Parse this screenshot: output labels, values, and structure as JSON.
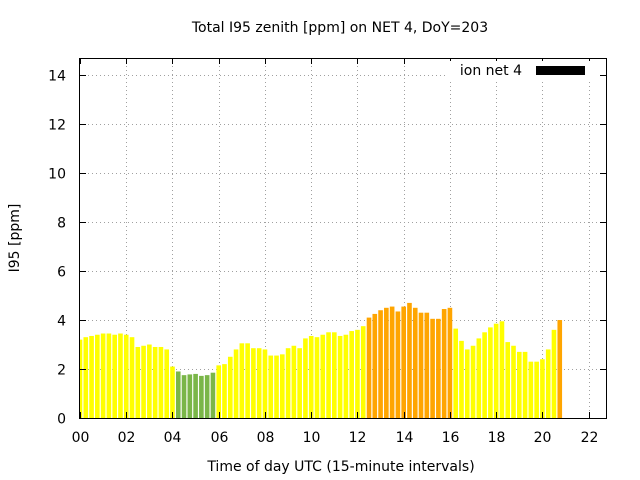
{
  "chart_data": {
    "type": "bar",
    "title": "Total I95 zenith [ppm] on NET 4, DoY=203",
    "xlabel": "Time of day UTC (15-minute intervals)",
    "ylabel": "I95 [ppm]",
    "xlim": [
      0,
      22.75
    ],
    "ylim": [
      0,
      14.7
    ],
    "x_ticks": [
      0,
      2,
      4,
      6,
      8,
      10,
      12,
      14,
      16,
      18,
      20,
      22
    ],
    "x_tick_labels": [
      "00",
      "02",
      "04",
      "06",
      "08",
      "10",
      "12",
      "14",
      "16",
      "18",
      "20",
      "22"
    ],
    "y_ticks": [
      0,
      2,
      4,
      6,
      8,
      10,
      12,
      14
    ],
    "y_tick_labels": [
      "0",
      "2",
      "4",
      "6",
      "8",
      "10",
      "12",
      "14"
    ],
    "grid": true,
    "legend": {
      "label": "ion net 4",
      "position": "top-right",
      "color": "#000000"
    },
    "bar_interval_hours": 0.25,
    "colors": {
      "low": "#7ab648",
      "medium": "#ffff00",
      "high": "#ffa500"
    },
    "series": [
      {
        "values": [
          3.2,
          3.3,
          3.35,
          3.4,
          3.45,
          3.45,
          3.4,
          3.45,
          3.4,
          3.3,
          2.9,
          2.95,
          3.0,
          2.9,
          2.9,
          2.8,
          2.1,
          1.9,
          1.75,
          1.78,
          1.8,
          1.72,
          1.75,
          1.85,
          2.15,
          2.2,
          2.5,
          2.8,
          3.05,
          3.05,
          2.85,
          2.85,
          2.8,
          2.55,
          2.55,
          2.6,
          2.85,
          2.95,
          2.85,
          3.25,
          3.35,
          3.3,
          3.4,
          3.5,
          3.5,
          3.35,
          3.4,
          3.55,
          3.6,
          3.75,
          4.1,
          4.25,
          4.4,
          4.5,
          4.55,
          4.35,
          4.55,
          4.7,
          4.5,
          4.3,
          4.3,
          4.05,
          4.05,
          4.45,
          4.5,
          3.65,
          3.15,
          2.8,
          2.95,
          3.25,
          3.5,
          3.7,
          3.85,
          3.95,
          3.1,
          2.95,
          2.7,
          2.7,
          2.3,
          2.3,
          2.4,
          2.8,
          3.6,
          4.0
        ],
        "levels": [
          "medium",
          "medium",
          "medium",
          "medium",
          "medium",
          "medium",
          "medium",
          "medium",
          "medium",
          "medium",
          "medium",
          "medium",
          "medium",
          "medium",
          "medium",
          "medium",
          "medium",
          "low",
          "low",
          "low",
          "low",
          "low",
          "low",
          "low",
          "medium",
          "medium",
          "medium",
          "medium",
          "medium",
          "medium",
          "medium",
          "medium",
          "medium",
          "medium",
          "medium",
          "medium",
          "medium",
          "medium",
          "medium",
          "medium",
          "medium",
          "medium",
          "medium",
          "medium",
          "medium",
          "medium",
          "medium",
          "medium",
          "medium",
          "medium",
          "high",
          "high",
          "high",
          "high",
          "high",
          "high",
          "high",
          "high",
          "high",
          "high",
          "high",
          "high",
          "high",
          "high",
          "high",
          "medium",
          "medium",
          "medium",
          "medium",
          "medium",
          "medium",
          "medium",
          "medium",
          "medium",
          "medium",
          "medium",
          "medium",
          "medium",
          "medium",
          "medium",
          "medium",
          "medium",
          "medium",
          "high"
        ]
      }
    ]
  }
}
